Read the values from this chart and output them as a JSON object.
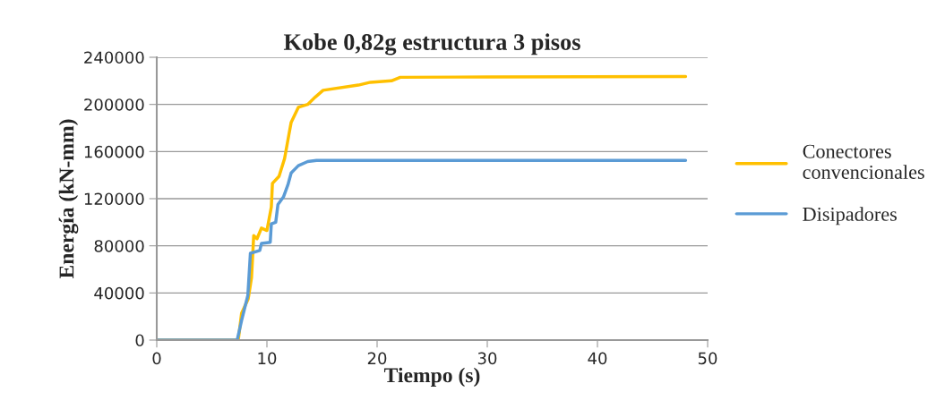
{
  "chart_data": {
    "type": "line",
    "title": "Kobe 0,82g estructura 3 pisos",
    "xlabel": "Tiempo (s)",
    "ylabel": "Energía (kN-mm)",
    "xlim": [
      0,
      50
    ],
    "xticks": [
      0,
      10,
      20,
      30,
      40,
      50
    ],
    "ylim": [
      0,
      240000
    ],
    "yticks": [
      0,
      40000,
      80000,
      120000,
      160000,
      200000,
      240000
    ],
    "grid": "y",
    "legend": "right",
    "marker": "none",
    "line_style": "solid",
    "series": [
      {
        "name": "Conectores convencionales",
        "color": "#ffc000",
        "x": [
          0,
          7.4,
          7.7,
          8.3,
          8.6,
          8.8,
          9.1,
          9.5,
          10.0,
          10.4,
          10.5,
          11.1,
          11.6,
          12.0,
          12.2,
          12.85,
          13.7,
          14.4,
          15.1,
          18.3,
          19.4,
          21.3,
          22.1,
          30,
          48
        ],
        "values": [
          0,
          0,
          22800,
          35000,
          53000,
          88600,
          86000,
          95000,
          93000,
          113000,
          133000,
          139000,
          154000,
          174700,
          184800,
          197500,
          200000,
          206300,
          212000,
          216400,
          218800,
          220000,
          223000,
          223300,
          223600
        ]
      },
      {
        "name": "Disipadores",
        "color": "#5b9bd5",
        "x": [
          0,
          7.3,
          7.7,
          8.27,
          8.5,
          9.35,
          9.5,
          10.3,
          10.4,
          10.8,
          11.0,
          11.5,
          11.9,
          12.2,
          12.85,
          13.7,
          14.5,
          48
        ],
        "values": [
          0,
          0,
          16700,
          38000,
          73700,
          76000,
          82000,
          83000,
          98700,
          100000,
          115000,
          121500,
          131600,
          141800,
          148000,
          151500,
          152500,
          152500
        ]
      }
    ]
  }
}
